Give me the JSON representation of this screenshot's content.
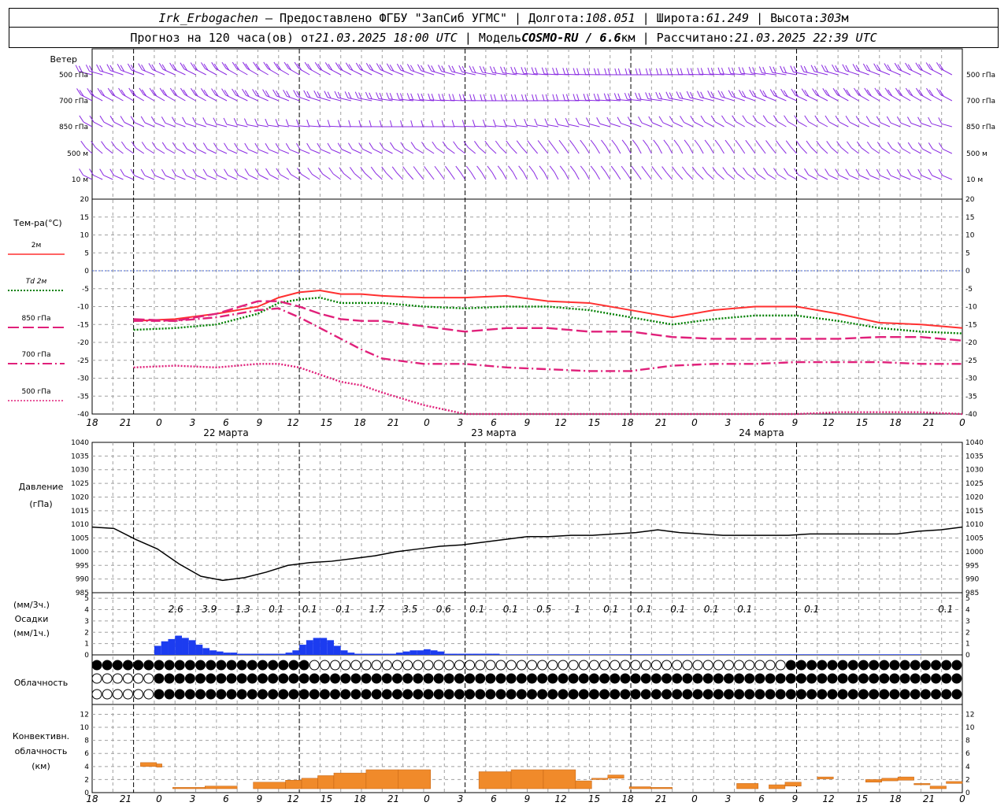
{
  "header": {
    "station": "Irk_Erbogachen",
    "dash": " – ",
    "provider_label": "Предоставлено ФГБУ \"ЗапСиб УГМС\"",
    "lon_label": "Долгота:",
    "lon_value": "108.051",
    "lat_label": "Широта:",
    "lat_value": "61.249",
    "alt_label": "Высота:",
    "alt_value": "303",
    "alt_unit": "м",
    "sep": " | ",
    "forecast_label": "Прогноз на 120 часа(ов) от",
    "forecast_start": "21.03.2025 18:00 UTC",
    "model_label": "Модель",
    "model_name": "COSMO-RU / 6.6",
    "model_unit": "км",
    "calc_label": "Рассчитано:",
    "calc_value": "21.03.2025 22:39 UTC"
  },
  "colors": {
    "wind": "#8a2be2",
    "t2m": "#ff3030",
    "td2m": "#008000",
    "t850": "#e0207a",
    "t700": "#e0207a",
    "t500": "#e0207a",
    "pressure": "#000000",
    "precip": "#1c3cf0",
    "convective": "#f08a2a",
    "grid": "#a0a0a0",
    "zero_line": "#4060d0"
  },
  "wind": {
    "title": "Ветер",
    "levels": [
      "500 гПа",
      "700 гПа",
      "850 гПа",
      "500 м",
      "10 м"
    ]
  },
  "temperature": {
    "title": "Тем-ра(°С)",
    "legend": [
      {
        "id": "t2m",
        "label": "2м",
        "dash": "solid"
      },
      {
        "id": "td2m",
        "label_prefix": "Td",
        "label": "2м",
        "dash": "dotted"
      },
      {
        "id": "t850",
        "label": "850 гПа",
        "dash": "longdash"
      },
      {
        "id": "t700",
        "label": "700 гПа",
        "dash": "dashdot"
      },
      {
        "id": "t500",
        "label": "500 гПа",
        "dash": "shortdot"
      }
    ],
    "ticks": [
      "20",
      "15",
      "10",
      "5",
      "0",
      "-5",
      "-10",
      "-15",
      "-20",
      "-25",
      "-30",
      "-35",
      "-40"
    ]
  },
  "time_axis": {
    "hour_labels": [
      "18",
      "21",
      "0",
      "3",
      "6",
      "9",
      "12",
      "15",
      "18",
      "21",
      "0",
      "3",
      "6",
      "9",
      "12",
      "15",
      "18",
      "21",
      "0",
      "3",
      "6",
      "9",
      "12",
      "15",
      "18",
      "21",
      "0"
    ],
    "dates": [
      "22 марта",
      "23 марта",
      "24 марта"
    ]
  },
  "pressure": {
    "title": "Давление",
    "unit": "(гПа)",
    "ticks": [
      "1040",
      "1035",
      "1030",
      "1025",
      "1020",
      "1015",
      "1010",
      "1005",
      "1000",
      "995",
      "990",
      "985"
    ]
  },
  "precip": {
    "title": "Осадки",
    "unit_3h": "(мм/3ч.)",
    "unit_1h": "(мм/1ч.)",
    "ticks": [
      "5",
      "4",
      "3",
      "2",
      "1",
      "0"
    ],
    "totals_3h": [
      "2.6",
      "3.9",
      "1.3",
      "0.1",
      "0.1",
      "0.1",
      "1.7",
      "3.5",
      "0.6",
      "0.1",
      "0.1",
      "0.5",
      "1",
      "0.1",
      "0.1",
      "0.1",
      "0.1",
      "0.1",
      "0.1",
      "0.1"
    ]
  },
  "cloud": {
    "title": "Облачность"
  },
  "convective": {
    "title": [
      "Конвективн.",
      "облачность",
      "(км)"
    ],
    "ticks": [
      "12",
      "10",
      "8",
      "6",
      "4",
      "2",
      "0"
    ]
  },
  "chart_data": [
    {
      "type": "line",
      "name": "temperature",
      "x_hours": [
        0,
        6,
        12,
        18,
        21,
        24,
        27,
        30,
        33,
        36,
        42,
        48,
        54,
        60,
        66,
        72,
        78,
        84,
        90,
        96,
        102,
        108,
        114,
        120
      ],
      "ylim": [
        -40,
        20
      ],
      "series": [
        {
          "name": "2м",
          "values": [
            -14,
            -13.5,
            -12,
            -10,
            -7.5,
            -6,
            -5.5,
            -6.5,
            -6.5,
            -7,
            -7.5,
            -7.5,
            -7,
            -8.5,
            -9,
            -11,
            -13,
            -11,
            -10,
            -10,
            -12,
            -14.5,
            -15,
            -16
          ]
        },
        {
          "name": "Td 2м",
          "values": [
            -16.5,
            -16,
            -15,
            -12,
            -9,
            -8,
            -7.5,
            -9,
            -9,
            -9,
            -10,
            -10.5,
            -10,
            -10,
            -11,
            -13,
            -15,
            -13.5,
            -12.5,
            -12.5,
            -14,
            -16,
            -17,
            -17.5
          ]
        },
        {
          "name": "850 гПа",
          "values": [
            -13.5,
            -14,
            -12,
            -8.5,
            -8.5,
            -10,
            -12,
            -13.5,
            -14,
            -14,
            -15.5,
            -17,
            -16,
            -16,
            -17,
            -17,
            -18.5,
            -19,
            -19,
            -19,
            -19,
            -18.5,
            -18.5,
            -19.5
          ]
        },
        {
          "name": "700 гПа",
          "values": [
            -14,
            -14,
            -13,
            -11,
            -10.5,
            -13,
            -16,
            -19,
            -22,
            -24.5,
            -26,
            -26,
            -27,
            -27.5,
            -28,
            -28,
            -26.5,
            -26,
            -26,
            -25.5,
            -25.5,
            -25.5,
            -26,
            -26
          ]
        },
        {
          "name": "500 гПа",
          "values": [
            -27,
            -26.5,
            -27,
            -26,
            -26,
            -27,
            -29,
            -31,
            -32,
            -34,
            -37.5,
            -40,
            -40,
            -40,
            -40,
            -40,
            -40,
            -40,
            -40,
            -40,
            -39.5,
            -39.5,
            -39.5,
            -40
          ]
        }
      ]
    },
    {
      "type": "line",
      "name": "pressure",
      "x_hours": [
        0,
        3,
        6,
        9,
        12,
        15,
        18,
        21,
        24,
        27,
        30,
        33,
        36,
        39,
        42,
        45,
        48,
        51,
        54,
        57,
        60,
        63,
        66,
        69,
        72,
        75,
        78,
        81,
        84,
        87,
        90,
        93,
        96,
        99,
        102,
        105,
        108,
        111,
        114,
        117,
        120
      ],
      "ylim": [
        985,
        1040
      ],
      "values": [
        1009,
        1008.5,
        1004.5,
        1001,
        995.5,
        991,
        989.5,
        990.5,
        992.5,
        995,
        996,
        996.5,
        997.5,
        998.5,
        1000,
        1001,
        1002,
        1002.5,
        1003.5,
        1004.5,
        1005.5,
        1005.5,
        1006,
        1006,
        1006.5,
        1007,
        1008,
        1007,
        1006.5,
        1006,
        1006,
        1006,
        1006,
        1006.5,
        1006.5,
        1006.5,
        1006.5,
        1006.5,
        1007.5,
        1008,
        1009
      ]
    },
    {
      "type": "bar",
      "name": "precip_1h",
      "x_start_hour": 9,
      "ylim": [
        0,
        5
      ],
      "values": [
        0.8,
        1.2,
        1.4,
        1.7,
        1.5,
        1.3,
        0.9,
        0.6,
        0.4,
        0.3,
        0.2,
        0.2,
        0.1,
        0.1,
        0.1,
        0.1,
        0.1,
        0.1,
        0.1,
        0.2,
        0.4,
        0.9,
        1.3,
        1.5,
        1.5,
        1.3,
        0.8,
        0.4,
        0.2,
        0.1,
        0.1,
        0.1,
        0.1,
        0.1,
        0.1,
        0.2,
        0.3,
        0.4,
        0.4,
        0.5,
        0.4,
        0.3,
        0.1,
        0.1,
        0.1,
        0.1,
        0.1,
        0.1,
        0.1,
        0.1,
        0.05,
        0.05,
        0.05,
        0.05,
        0.05,
        0.05,
        0.05,
        0.05,
        0.05,
        0.05,
        0.05,
        0.05,
        0.05,
        0.05,
        0.05,
        0.05,
        0.05,
        0.05,
        0.05,
        0.05,
        0.05,
        0.05,
        0.05,
        0.05,
        0.05,
        0.05,
        0.05,
        0.05,
        0.05,
        0.05,
        0.05,
        0.05,
        0.05,
        0.05,
        0.05,
        0.05,
        0.05,
        0.05,
        0.05,
        0.05,
        0.05,
        0.05,
        0.05,
        0.05,
        0.05,
        0.05,
        0.05,
        0.05,
        0.05,
        0.05,
        0.05,
        0.05,
        0.05,
        0.05,
        0.05,
        0.05,
        0.05,
        0.05,
        0.05,
        0.05,
        0.05
      ]
    },
    {
      "type": "bar",
      "name": "convective_cloud",
      "ylim": [
        0,
        13
      ],
      "segments": [
        {
          "from": 9,
          "to": 12,
          "bottom": 4,
          "top": 4.6
        },
        {
          "from": 12,
          "to": 13,
          "bottom": 3.9,
          "top": 4.4
        },
        {
          "from": 15,
          "to": 21,
          "bottom": 0.6,
          "top": 0.8
        },
        {
          "from": 21,
          "to": 27,
          "bottom": 0.6,
          "top": 1.0
        },
        {
          "from": 30,
          "to": 36,
          "bottom": 0.6,
          "top": 1.6
        },
        {
          "from": 36,
          "to": 39,
          "bottom": 0.6,
          "top": 1.9
        },
        {
          "from": 39,
          "to": 42,
          "bottom": 0.6,
          "top": 2.2
        },
        {
          "from": 42,
          "to": 45,
          "bottom": 0.6,
          "top": 2.6
        },
        {
          "from": 45,
          "to": 51,
          "bottom": 0.6,
          "top": 3.0
        },
        {
          "from": 51,
          "to": 57,
          "bottom": 0.6,
          "top": 3.5
        },
        {
          "from": 57,
          "to": 63,
          "bottom": 0.6,
          "top": 3.5
        },
        {
          "from": 72,
          "to": 78,
          "bottom": 0.6,
          "top": 3.2
        },
        {
          "from": 78,
          "to": 84,
          "bottom": 0.6,
          "top": 3.5
        },
        {
          "from": 84,
          "to": 90,
          "bottom": 0.6,
          "top": 3.5
        },
        {
          "from": 90,
          "to": 93,
          "bottom": 0.6,
          "top": 1.8
        },
        {
          "from": 93,
          "to": 96,
          "bottom": 2.0,
          "top": 2.2
        },
        {
          "from": 96,
          "to": 99,
          "bottom": 2.2,
          "top": 2.7
        },
        {
          "from": 100,
          "to": 104,
          "bottom": 0.6,
          "top": 0.9
        },
        {
          "from": 104,
          "to": 108,
          "bottom": 0.6,
          "top": 0.8
        },
        {
          "from": 120,
          "to": 124,
          "bottom": 0.6,
          "top": 1.4
        },
        {
          "from": 126,
          "to": 129,
          "bottom": 0.6,
          "top": 1.2
        },
        {
          "from": 129,
          "to": 132,
          "bottom": 1.0,
          "top": 1.6
        },
        {
          "from": 135,
          "to": 138,
          "bottom": 2.1,
          "top": 2.4
        },
        {
          "from": 144,
          "to": 147,
          "bottom": 1.6,
          "top": 2.0
        },
        {
          "from": 147,
          "to": 150,
          "bottom": 1.8,
          "top": 2.2
        },
        {
          "from": 150,
          "to": 153,
          "bottom": 1.9,
          "top": 2.4
        },
        {
          "from": 153,
          "to": 156,
          "bottom": 1.2,
          "top": 1.4
        },
        {
          "from": 156,
          "to": 159,
          "bottom": 0.6,
          "top": 1.0
        },
        {
          "from": 159,
          "to": 162,
          "bottom": 1.4,
          "top": 1.7
        }
      ]
    }
  ]
}
